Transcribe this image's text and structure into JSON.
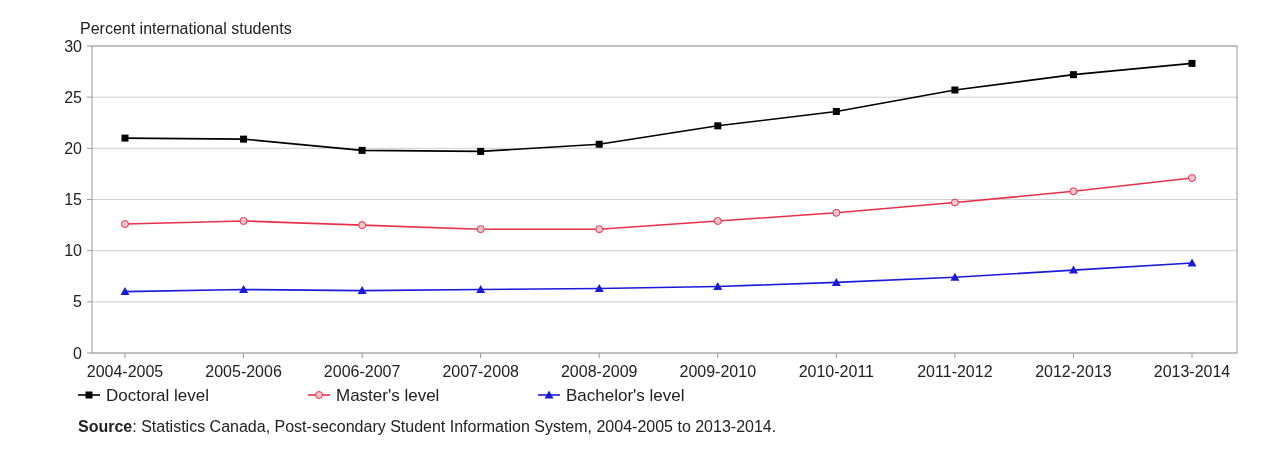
{
  "chart_data": {
    "type": "line",
    "ylabel": "Percent international students",
    "categories": [
      "2004-2005",
      "2005-2006",
      "2006-2007",
      "2007-2008",
      "2008-2009",
      "2009-2010",
      "2010-2011",
      "2011-2012",
      "2012-2013",
      "2013-2014"
    ],
    "series": [
      {
        "name": "Doctoral level",
        "color": "#000000",
        "marker": "square",
        "values": [
          21.0,
          20.9,
          19.8,
          19.7,
          20.4,
          22.2,
          23.6,
          25.7,
          27.2,
          28.3
        ]
      },
      {
        "name": "Master's level",
        "color": "#e8304a",
        "marker": "circle",
        "values": [
          12.6,
          12.9,
          12.5,
          12.1,
          12.1,
          12.9,
          13.7,
          14.7,
          15.8,
          17.1
        ]
      },
      {
        "name": "Bachelor's level",
        "color": "#1a1adb",
        "marker": "triangle",
        "values": [
          6.0,
          6.2,
          6.1,
          6.2,
          6.3,
          6.5,
          6.9,
          7.4,
          8.1,
          8.8
        ]
      }
    ],
    "ylim": [
      0,
      30
    ],
    "yticks": [
      0,
      5,
      10,
      15,
      20,
      25,
      30
    ],
    "grid": "y",
    "legend": "bottom",
    "line_style": "solid",
    "annotations": [
      "Source: Statistics Canada, Post-secondary Student Information System, 2004-2005 to 2013-2014."
    ]
  }
}
